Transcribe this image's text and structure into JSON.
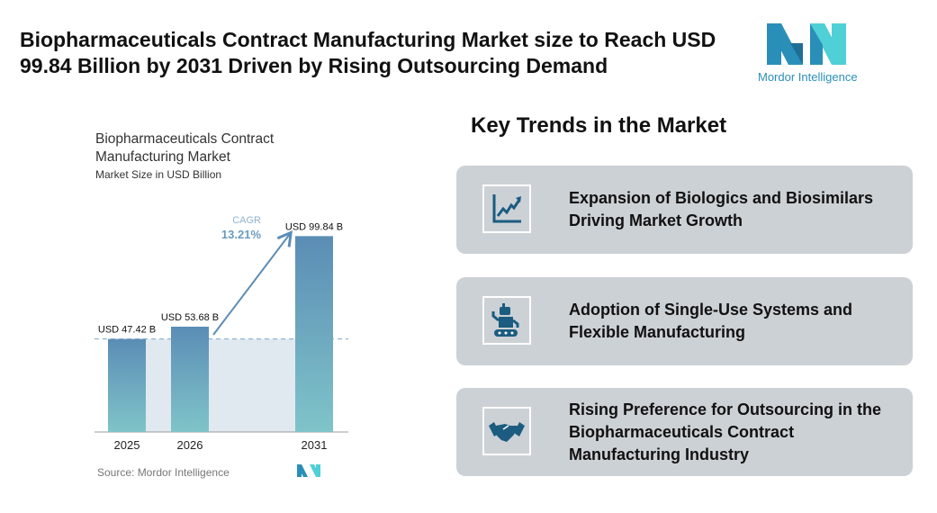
{
  "header": {
    "title": "Biopharmaceuticals Contract Manufacturing Market size to Reach USD 99.84 Billion by 2031 Driven by Rising Outsourcing Demand",
    "logo_text": "Mordor Intelligence"
  },
  "chart_data": {
    "type": "bar",
    "title": "Biopharmaceuticals Contract Manufacturing Market",
    "subtitle": "Market Size in USD Billion",
    "categories": [
      "2025",
      "2026",
      "2031"
    ],
    "values": [
      47.42,
      53.68,
      99.84
    ],
    "data_labels": [
      "USD 47.42 B",
      "USD 53.68 B",
      "USD 99.84 B"
    ],
    "annotation": {
      "label": "CAGR",
      "value": "13.21%"
    },
    "source": "Source:  Mordor Intelligence",
    "colors": {
      "bar_top": "#5b8db5",
      "bar_bottom": "#7fc4c9",
      "shade": "#e1e9f0",
      "arrow": "#5b8db5"
    },
    "grid": false
  },
  "trends": {
    "title": "Key Trends in the Market",
    "items": [
      {
        "icon": "growth-chart-icon",
        "text": "Expansion of Biologics and Biosimilars Driving Market Growth"
      },
      {
        "icon": "robot-icon",
        "text": "Adoption of Single-Use Systems and Flexible Manufacturing"
      },
      {
        "icon": "handshake-icon",
        "text": "Rising Preference for Outsourcing in the Biopharmaceuticals Contract Manufacturing Industry"
      }
    ]
  }
}
